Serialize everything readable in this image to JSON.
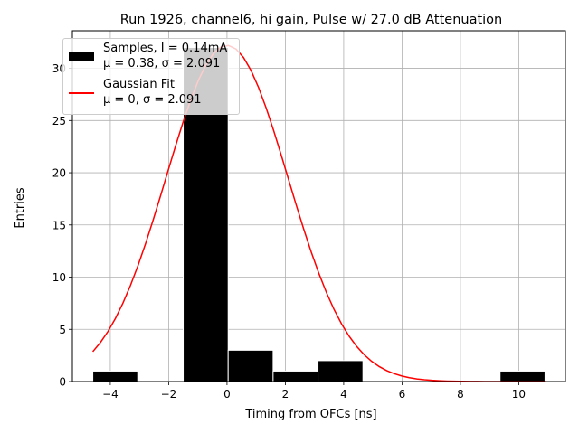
{
  "chart_data": {
    "type": "bar",
    "title": "Run 1926, channel6, hi gain, Pulse w/ 27.0 dB Attenuation",
    "xlabel": "Timing from OFCs [ns]",
    "ylabel": "Entries",
    "xlim": [
      -5.3,
      11.6
    ],
    "ylim": [
      0,
      33.6
    ],
    "xticks": [
      -4,
      -2,
      0,
      2,
      4,
      6,
      8,
      10
    ],
    "yticks": [
      0,
      5,
      10,
      15,
      20,
      25,
      30
    ],
    "grid": true,
    "histogram": {
      "name": "Samples, I = 0.14mA",
      "bins": [
        {
          "x0": -4.6,
          "x1": -3.06,
          "count": 1
        },
        {
          "x0": -1.5,
          "x1": 0.04,
          "count": 32
        },
        {
          "x0": 0.04,
          "x1": 1.58,
          "count": 3
        },
        {
          "x0": 1.58,
          "x1": 3.12,
          "count": 1
        },
        {
          "x0": 3.12,
          "x1": 4.66,
          "count": 2
        },
        {
          "x0": 9.36,
          "x1": 10.9,
          "count": 1
        }
      ],
      "color": "#000000",
      "edge_color": "#ffffff"
    },
    "fit": {
      "name": "Gaussian Fit",
      "mu": 0,
      "sigma": 2.091,
      "amplitude": 32.2,
      "x_range": [
        -4.6,
        10.9
      ],
      "color": "#ff0000"
    },
    "legend": {
      "position": "top-left",
      "entries": [
        {
          "line1": "Samples, I = 0.14mA",
          "line2": "μ = 0.38, σ = 2.091"
        },
        {
          "line1": "Gaussian Fit",
          "line2": "μ = 0, σ = 2.091"
        }
      ]
    }
  }
}
